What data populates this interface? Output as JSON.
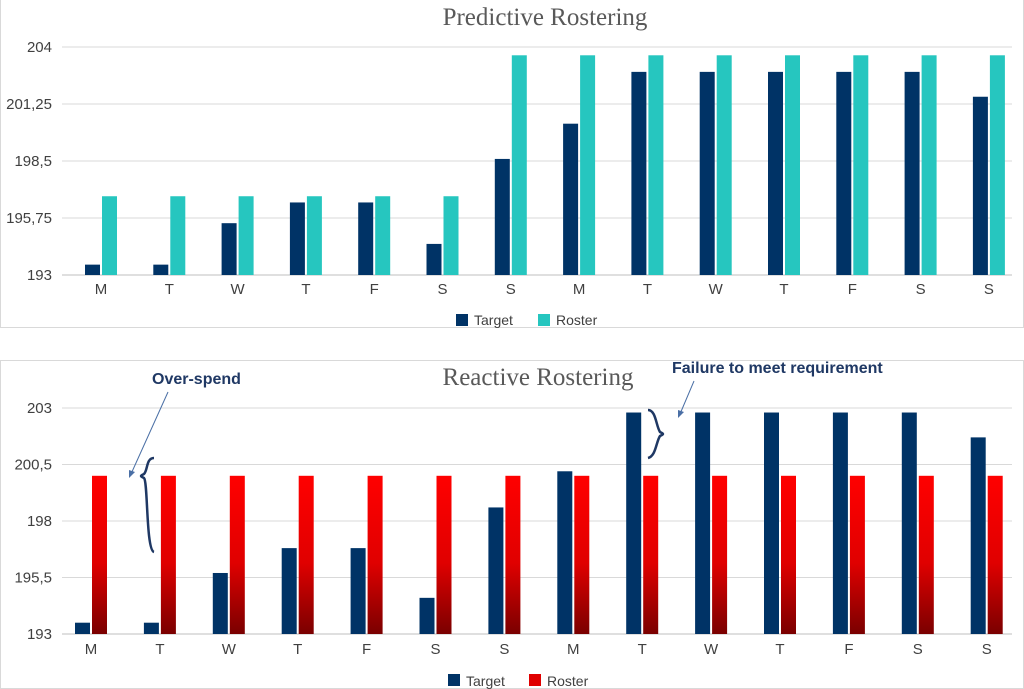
{
  "chart_data": [
    {
      "type": "bar",
      "title": "Predictive Rostering",
      "categories": [
        "M",
        "T",
        "W",
        "T",
        "F",
        "S",
        "S",
        "M",
        "T",
        "W",
        "T",
        "F",
        "S",
        "S"
      ],
      "yticks": [
        "204",
        "201,25",
        "198,5",
        "195,75",
        "193"
      ],
      "ylim": [
        193,
        204
      ],
      "grid": true,
      "legend": "bottom",
      "series": [
        {
          "name": "Target",
          "color": "#003366",
          "values": [
            193.5,
            193.5,
            195.5,
            196.5,
            196.5,
            194.5,
            198.6,
            200.3,
            202.8,
            202.8,
            202.8,
            202.8,
            202.8,
            201.6
          ]
        },
        {
          "name": "Roster",
          "color": "#26c6bf",
          "values": [
            196.8,
            196.8,
            196.8,
            196.8,
            196.8,
            196.8,
            203.6,
            203.6,
            203.6,
            203.6,
            203.6,
            203.6,
            203.6,
            203.6
          ]
        }
      ]
    },
    {
      "type": "bar",
      "title": "Reactive Rostering",
      "categories": [
        "M",
        "T",
        "W",
        "T",
        "F",
        "S",
        "S",
        "M",
        "T",
        "W",
        "T",
        "F",
        "S",
        "S"
      ],
      "yticks": [
        "203",
        "200,5",
        "198",
        "195,5",
        "193"
      ],
      "ylim": [
        193,
        203
      ],
      "grid": true,
      "legend": "bottom",
      "series": [
        {
          "name": "Target",
          "color": "#003366",
          "values": [
            193.5,
            193.5,
            195.7,
            196.8,
            196.8,
            194.6,
            198.6,
            200.2,
            202.8,
            202.8,
            202.8,
            202.8,
            202.8,
            201.7
          ]
        },
        {
          "name": "Roster",
          "color": "#e00000",
          "values": [
            200.0,
            200.0,
            200.0,
            200.0,
            200.0,
            200.0,
            200.0,
            200.0,
            200.0,
            200.0,
            200.0,
            200.0,
            200.0,
            200.0
          ]
        }
      ],
      "annotations": [
        "Over-spend",
        "Failure to meet requirement"
      ]
    }
  ]
}
